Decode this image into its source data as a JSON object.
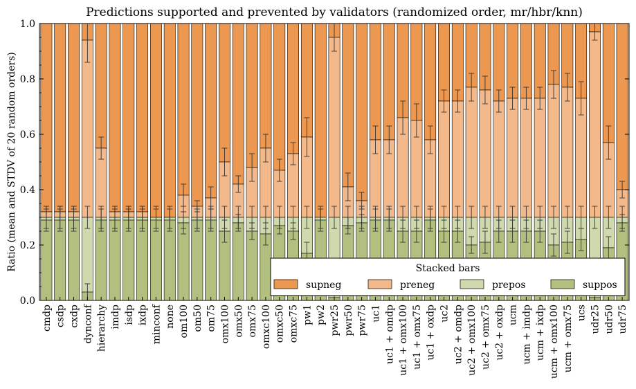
{
  "chart_data": {
    "type": "bar",
    "stacked": true,
    "title": "Predictions supported and prevented by validators (randomized order, mr/hbr/knn)",
    "ylabel": "Ratio (mean and STDV of 20 random orders)",
    "xlabel": "",
    "ylim": [
      0,
      1.0
    ],
    "yticks": [
      "0.0",
      "0.2",
      "0.4",
      "0.6",
      "0.8",
      "1.0"
    ],
    "grid": false,
    "legend": {
      "title": "Stacked bars",
      "placement": "bottom-right",
      "columns": 4
    },
    "categories": [
      "cmdp",
      "csdp",
      "cxdp",
      "dynconf",
      "hierarchy",
      "imdp",
      "isdp",
      "ixdp",
      "minconf",
      "none",
      "om100",
      "om50",
      "om75",
      "omx100",
      "omx50",
      "omx75",
      "omxc100",
      "omxc50",
      "omxc75",
      "pw1",
      "pw2",
      "pwr25",
      "pwr50",
      "pwr75",
      "uc1",
      "uc1 + omdp",
      "uc1 + omx100",
      "uc1 + omx75",
      "uc1 + oxdp",
      "uc2",
      "uc2 + omdp",
      "uc2 + omx100",
      "uc2 + omx75",
      "uc2 + oxdp",
      "ucm",
      "ucm + imdp",
      "ucm + ixdp",
      "ucm + omx100",
      "ucm + omx75",
      "ucs",
      "udr25",
      "udr50",
      "udr75"
    ],
    "series": [
      {
        "name": "supneg",
        "color": "#ec9850",
        "cumulative": [
          1,
          1,
          1,
          1,
          1,
          1,
          1,
          1,
          1,
          1,
          1,
          1,
          1,
          1,
          1,
          1,
          1,
          1,
          1,
          1,
          1,
          1,
          1,
          1,
          1,
          1,
          1,
          1,
          1,
          1,
          1,
          1,
          1,
          1,
          1,
          1,
          1,
          1,
          1,
          1,
          1,
          1,
          1
        ],
        "err": [
          0,
          0,
          0,
          0,
          0,
          0,
          0,
          0,
          0,
          0,
          0,
          0,
          0,
          0,
          0,
          0,
          0,
          0,
          0,
          0,
          0,
          0,
          0,
          0,
          0,
          0,
          0,
          0,
          0,
          0,
          0,
          0,
          0,
          0,
          0,
          0,
          0,
          0,
          0,
          0,
          0,
          0,
          0
        ]
      },
      {
        "name": "preneg",
        "color": "#f3b98a",
        "cumulative": [
          0.32,
          0.32,
          0.32,
          0.94,
          0.55,
          0.32,
          0.32,
          0.32,
          0.3,
          0.3,
          0.38,
          0.34,
          0.37,
          0.5,
          0.42,
          0.48,
          0.55,
          0.47,
          0.53,
          0.59,
          0.3,
          0.95,
          0.41,
          0.36,
          0.58,
          0.58,
          0.66,
          0.65,
          0.58,
          0.72,
          0.72,
          0.77,
          0.76,
          0.72,
          0.73,
          0.73,
          0.73,
          0.78,
          0.77,
          0.73,
          0.97,
          0.57,
          0.4
        ],
        "err": [
          0.02,
          0.02,
          0.02,
          0.08,
          0.04,
          0.02,
          0.02,
          0.02,
          0,
          0,
          0.04,
          0.02,
          0.04,
          0.05,
          0.03,
          0.05,
          0.05,
          0.04,
          0.04,
          0.07,
          0,
          0.05,
          0.05,
          0.03,
          0.05,
          0.05,
          0.06,
          0.06,
          0.05,
          0.04,
          0.04,
          0.05,
          0.05,
          0.04,
          0.04,
          0.04,
          0.04,
          0.05,
          0.05,
          0.06,
          0.03,
          0.06,
          0.03
        ]
      },
      {
        "name": "prepos",
        "color": "#cfd9ad",
        "cumulative": [
          0.3,
          0.3,
          0.3,
          0.3,
          0.3,
          0.3,
          0.3,
          0.3,
          0.3,
          0.3,
          0.3,
          0.3,
          0.3,
          0.3,
          0.3,
          0.3,
          0.3,
          0.3,
          0.3,
          0.3,
          0.3,
          0.3,
          0.3,
          0.3,
          0.3,
          0.3,
          0.3,
          0.3,
          0.3,
          0.3,
          0.3,
          0.3,
          0.3,
          0.3,
          0.3,
          0.3,
          0.3,
          0.3,
          0.3,
          0.3,
          0.3,
          0.3,
          0.3
        ],
        "err": [
          0.04,
          0.04,
          0.04,
          0.04,
          0.04,
          0.04,
          0.04,
          0.04,
          0.04,
          0.04,
          0.04,
          0.04,
          0.04,
          0.04,
          0.04,
          0.04,
          0.04,
          0.04,
          0.04,
          0.04,
          0.04,
          0.04,
          0.04,
          0.04,
          0.04,
          0.04,
          0.04,
          0.04,
          0.04,
          0.04,
          0.04,
          0.04,
          0.04,
          0.04,
          0.04,
          0.04,
          0.04,
          0.04,
          0.04,
          0.04,
          0.04,
          0.04,
          0.04
        ]
      },
      {
        "name": "suppos",
        "color": "#b2c07f",
        "cumulative": [
          0.29,
          0.29,
          0.29,
          0.03,
          0.29,
          0.29,
          0.29,
          0.29,
          0.29,
          0.29,
          0.28,
          0.29,
          0.29,
          0.25,
          0.28,
          0.25,
          0.24,
          0.27,
          0.25,
          0.17,
          0.29,
          0.01,
          0.27,
          0.28,
          0.29,
          0.29,
          0.25,
          0.25,
          0.29,
          0.25,
          0.25,
          0.2,
          0.21,
          0.25,
          0.25,
          0.25,
          0.25,
          0.2,
          0.21,
          0.22,
          0.01,
          0.19,
          0.28
        ],
        "err": [
          0.04,
          0.04,
          0.04,
          0.03,
          0.04,
          0.04,
          0.04,
          0.04,
          0.04,
          0.04,
          0.04,
          0.04,
          0.04,
          0.04,
          0.03,
          0.03,
          0.04,
          0.03,
          0.03,
          0.04,
          0.04,
          0.01,
          0.03,
          0.03,
          0.04,
          0.04,
          0.04,
          0.04,
          0.04,
          0.04,
          0.04,
          0.03,
          0.04,
          0.04,
          0.04,
          0.04,
          0.04,
          0.04,
          0.04,
          0.04,
          0.01,
          0.04,
          0.03
        ]
      }
    ]
  }
}
